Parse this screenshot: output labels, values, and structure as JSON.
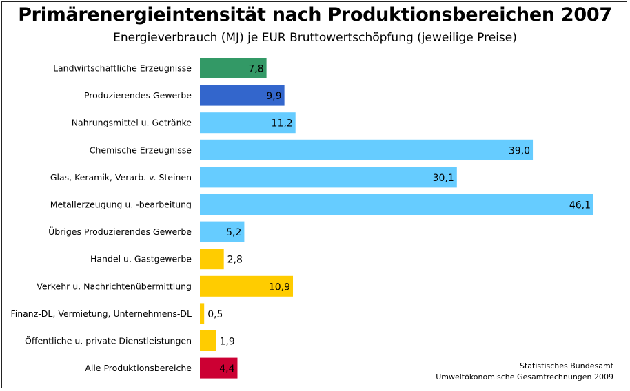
{
  "chart_data": {
    "type": "bar",
    "orientation": "horizontal",
    "title": "Primärenergieintensität nach Produktionsbereichen 2007",
    "subtitle": "Energieverbrauch (MJ) je EUR Bruttowertschöpfung (jeweilige Preise)",
    "categories": [
      "Landwirtschaftliche Erzeugnisse",
      "Produzierendes Gewerbe",
      "Nahrungsmittel u. Getränke",
      "Chemische Erzeugnisse",
      "Glas, Keramik, Verarb. v. Steinen",
      "Metallerzeugung u. -bearbeitung",
      "Übriges Produzierendes Gewerbe",
      "Handel u. Gastgewerbe",
      "Verkehr u. Nachrichtenübermittlung",
      "Finanz-DL, Vermietung, Unternehmens-DL",
      "Öffentliche u. private Dienstleistungen",
      "Alle Produktionsbereiche"
    ],
    "values": [
      7.8,
      9.9,
      11.2,
      39.0,
      30.1,
      46.1,
      5.2,
      2.8,
      10.9,
      0.5,
      1.9,
      4.4
    ],
    "value_labels": [
      "7,8",
      "9,9",
      "11,2",
      "39,0",
      "30,1",
      "46,1",
      "5,2",
      "2,8",
      "10,9",
      "0,5",
      "1,9",
      "4,4"
    ],
    "colors": [
      "#339966",
      "#3366cc",
      "#66ccff",
      "#66ccff",
      "#66ccff",
      "#66ccff",
      "#66ccff",
      "#ffcc00",
      "#ffcc00",
      "#ffcc00",
      "#ffcc00",
      "#cc0033"
    ],
    "value_label_inside": [
      true,
      true,
      true,
      true,
      true,
      true,
      true,
      false,
      true,
      false,
      false,
      true
    ],
    "value_label_colors": [
      "#ffffff",
      "#ffffff",
      "#000000",
      "#000000",
      "#000000",
      "#000000",
      "#000000",
      "#000000",
      "#000000",
      "#000000",
      "#000000",
      "#ffffff"
    ],
    "xlim": [
      0,
      46.1
    ],
    "grid": false,
    "legend": "none"
  },
  "source": {
    "line1": "Statistisches Bundesamt",
    "line2": "Umweltökonomische Gesamtrechnungen 2009"
  }
}
